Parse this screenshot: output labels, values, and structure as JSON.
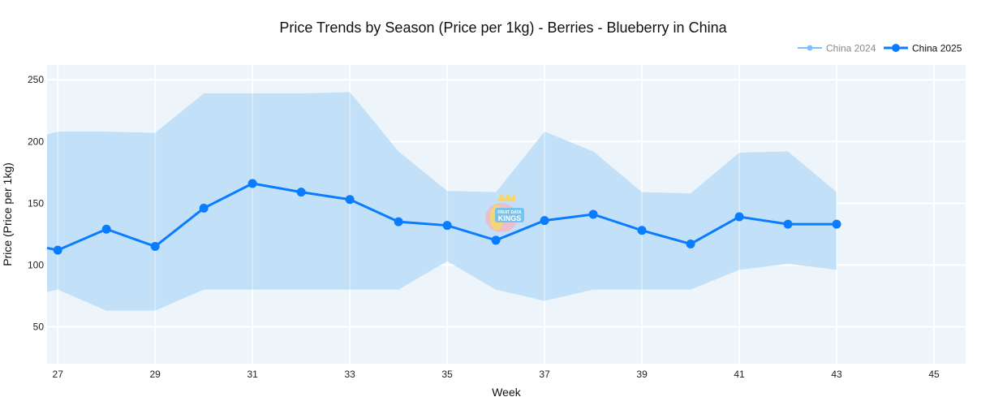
{
  "chart_data": {
    "type": "line",
    "title": "Price Trends by Season (Price per 1kg) - Berries - Blueberry in China",
    "xlabel": "Week",
    "ylabel": "Price (Price per 1kg)",
    "xlim": [
      26.78,
      45.65
    ],
    "ylim": [
      20,
      262
    ],
    "x_ticks": [
      27,
      29,
      31,
      33,
      35,
      37,
      39,
      41,
      43,
      45
    ],
    "y_ticks": [
      50,
      100,
      150,
      200,
      250
    ],
    "grid": true,
    "legend_position": "top-right",
    "legend": [
      {
        "name": "China 2024",
        "color": "#7fbfff",
        "muted": true
      },
      {
        "name": "China 2025",
        "color": "#0a7cff",
        "muted": false
      }
    ],
    "band": {
      "color": "#bfdff8",
      "x": [
        26,
        27,
        28,
        29,
        30,
        31,
        32,
        33,
        34,
        35,
        36,
        37,
        38,
        39,
        40,
        41,
        42,
        43
      ],
      "upper": [
        198,
        208,
        208,
        207,
        239,
        239,
        239,
        240,
        192,
        160,
        159,
        208,
        192,
        159,
        158,
        191,
        192,
        159
      ],
      "lower": [
        72,
        80,
        63,
        63,
        80,
        80,
        80,
        80,
        80,
        103,
        80,
        71,
        80,
        80,
        80,
        96,
        101,
        96
      ]
    },
    "series": [
      {
        "name": "China 2025",
        "color": "#0a7cff",
        "x": [
          26,
          27,
          28,
          29,
          30,
          31,
          32,
          33,
          34,
          35,
          36,
          37,
          38,
          39,
          40,
          41,
          42,
          43
        ],
        "y": [
          120,
          112,
          129,
          115,
          146,
          166,
          159,
          153,
          135,
          132,
          120,
          136,
          141,
          128,
          117,
          139,
          133,
          133
        ]
      }
    ],
    "watermark": "FRUIT DATA KINGS"
  },
  "colors": {
    "plot_bg": "#eef5fa",
    "grid": "#ffffff"
  }
}
